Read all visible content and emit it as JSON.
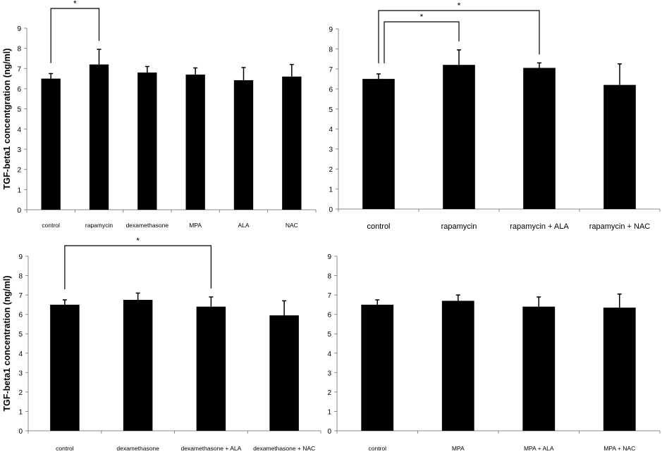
{
  "chart_data": [
    {
      "type": "bar",
      "ylabel": "TGF-beta1 concentgration (ng/ml)",
      "ylim": [
        0,
        9
      ],
      "yticks": [
        "0",
        "1",
        "2",
        "3",
        "4",
        "5",
        "6",
        "7",
        "8",
        "9"
      ],
      "categories": [
        "control",
        "rapamycin",
        "dexamethasone",
        "MPA",
        "ALA",
        "NAC"
      ],
      "values": [
        6.5,
        7.2,
        6.8,
        6.7,
        6.42,
        6.6
      ],
      "error_upper": [
        0.25,
        0.75,
        0.3,
        0.33,
        0.63,
        0.6
      ],
      "significance": [
        {
          "from": 0,
          "to": 1,
          "label": "*"
        }
      ]
    },
    {
      "type": "bar",
      "ylabel": "",
      "ylim": [
        0,
        9
      ],
      "yticks": [
        "0",
        "1",
        "2",
        "3",
        "4",
        "5",
        "6",
        "7",
        "8",
        "9"
      ],
      "categories": [
        "control",
        "rapamycin",
        "rapamycin + ALA",
        "rapamycin + NAC"
      ],
      "values": [
        6.5,
        7.2,
        7.05,
        6.2
      ],
      "error_upper": [
        0.25,
        0.75,
        0.25,
        1.05
      ],
      "significance": [
        {
          "from": 0,
          "to": 1,
          "label": "*"
        },
        {
          "from": 0,
          "to": 2,
          "label": "*"
        }
      ]
    },
    {
      "type": "bar",
      "ylabel": "TGF-beta1 concentration (ng/ml)",
      "ylim": [
        0,
        9
      ],
      "yticks": [
        "0",
        "1",
        "2",
        "3",
        "4",
        "5",
        "6",
        "7",
        "8",
        "9"
      ],
      "categories": [
        "control",
        "dexamethasone",
        "dexamethasone + ALA",
        "dexamethasone + NAC"
      ],
      "values": [
        6.5,
        6.75,
        6.4,
        5.95
      ],
      "error_upper": [
        0.25,
        0.35,
        0.5,
        0.75
      ],
      "significance": [
        {
          "from": 0,
          "to": 2,
          "label": "*"
        }
      ]
    },
    {
      "type": "bar",
      "ylabel": "",
      "ylim": [
        0,
        9
      ],
      "yticks": [
        "0",
        "1",
        "2",
        "3",
        "4",
        "5",
        "6",
        "7",
        "8",
        "9"
      ],
      "categories": [
        "control",
        "MPA",
        "MPA + ALA",
        "MPA + NAC"
      ],
      "values": [
        6.5,
        6.7,
        6.4,
        6.35
      ],
      "error_upper": [
        0.25,
        0.3,
        0.5,
        0.7
      ],
      "significance": []
    }
  ]
}
